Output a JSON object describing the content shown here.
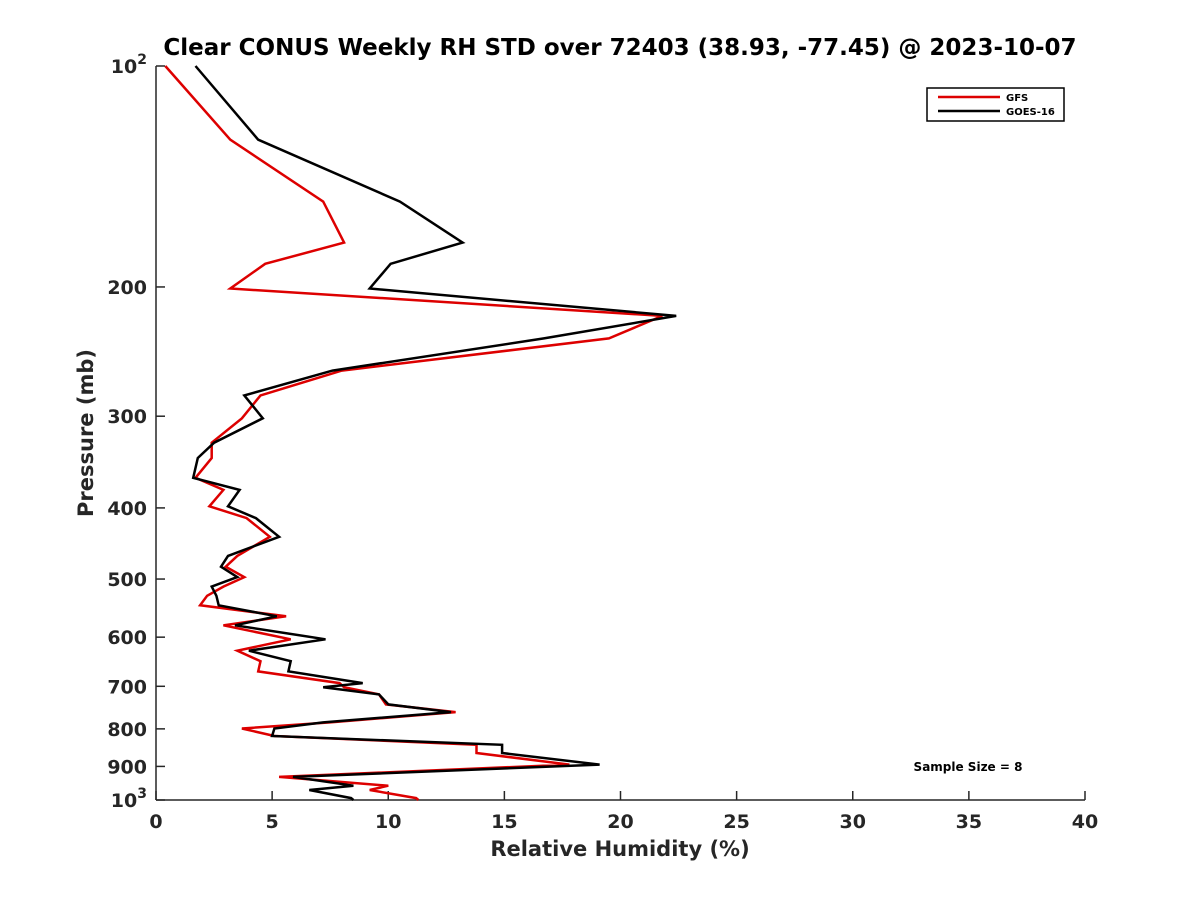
{
  "chart_data": {
    "type": "line",
    "title": "Clear CONUS Weekly RH STD over 72403 (38.93, -77.45) @ 2023-10-07",
    "xlabel": "Relative Humidity (%)",
    "ylabel": "Pressure (mb)",
    "xlim": [
      0,
      40
    ],
    "ylim": [
      100,
      1000
    ],
    "y_scale": "log",
    "y_reversed": true,
    "grid": false,
    "legend_position": "top-right",
    "x_ticks": [
      {
        "value": 0,
        "label": "0"
      },
      {
        "value": 5,
        "label": "5"
      },
      {
        "value": 10,
        "label": "10"
      },
      {
        "value": 15,
        "label": "15"
      },
      {
        "value": 20,
        "label": "20"
      },
      {
        "value": 25,
        "label": "25"
      },
      {
        "value": 30,
        "label": "30"
      },
      {
        "value": 35,
        "label": "35"
      },
      {
        "value": 40,
        "label": "40"
      }
    ],
    "y_ticks": [
      {
        "value": 100,
        "base": "10",
        "exp": "2"
      },
      {
        "value": 200,
        "base": "200",
        "exp": ""
      },
      {
        "value": 300,
        "base": "300",
        "exp": ""
      },
      {
        "value": 400,
        "base": "400",
        "exp": ""
      },
      {
        "value": 500,
        "base": "500",
        "exp": ""
      },
      {
        "value": 600,
        "base": "600",
        "exp": ""
      },
      {
        "value": 700,
        "base": "700",
        "exp": ""
      },
      {
        "value": 800,
        "base": "800",
        "exp": ""
      },
      {
        "value": 900,
        "base": "900",
        "exp": ""
      },
      {
        "value": 1000,
        "base": "10",
        "exp": "3"
      }
    ],
    "annotation": "Sample Size = 8",
    "series": [
      {
        "name": "GFS",
        "color": "#dd0000",
        "points": [
          [
            0.4,
            100
          ],
          [
            3.2,
            126
          ],
          [
            7.2,
            153
          ],
          [
            8.1,
            174
          ],
          [
            4.7,
            186
          ],
          [
            3.2,
            201
          ],
          [
            21.8,
            219
          ],
          [
            19.5,
            235
          ],
          [
            8.0,
            260
          ],
          [
            4.5,
            281
          ],
          [
            3.7,
            302
          ],
          [
            2.4,
            326
          ],
          [
            2.4,
            342
          ],
          [
            1.7,
            364
          ],
          [
            2.9,
            378
          ],
          [
            2.3,
            398
          ],
          [
            3.9,
            413
          ],
          [
            4.9,
            438
          ],
          [
            3.5,
            465
          ],
          [
            3.0,
            481
          ],
          [
            3.8,
            497
          ],
          [
            2.9,
            512
          ],
          [
            2.2,
            527
          ],
          [
            1.9,
            543
          ],
          [
            5.6,
            562
          ],
          [
            2.9,
            578
          ],
          [
            5.8,
            604
          ],
          [
            3.5,
            626
          ],
          [
            4.5,
            647
          ],
          [
            4.4,
            668
          ],
          [
            7.9,
            693
          ],
          [
            8.1,
            702
          ],
          [
            9.6,
            718
          ],
          [
            9.9,
            741
          ],
          [
            12.9,
            759
          ],
          [
            7.5,
            784
          ],
          [
            3.7,
            799
          ],
          [
            5.1,
            818
          ],
          [
            13.8,
            841
          ],
          [
            13.8,
            863
          ],
          [
            17.8,
            895
          ],
          [
            5.3,
            930
          ],
          [
            10.0,
            956
          ],
          [
            9.2,
            969
          ],
          [
            11.2,
            994
          ],
          [
            11.3,
            1000
          ]
        ]
      },
      {
        "name": "GOES-16",
        "color": "#000000",
        "points": [
          [
            1.7,
            100
          ],
          [
            4.4,
            126
          ],
          [
            10.5,
            153
          ],
          [
            13.2,
            174
          ],
          [
            10.1,
            186
          ],
          [
            9.2,
            201
          ],
          [
            22.4,
            219
          ],
          [
            16.7,
            235
          ],
          [
            7.6,
            260
          ],
          [
            3.8,
            281
          ],
          [
            4.6,
            302
          ],
          [
            2.5,
            326
          ],
          [
            1.8,
            342
          ],
          [
            1.6,
            364
          ],
          [
            3.6,
            378
          ],
          [
            3.1,
            398
          ],
          [
            4.3,
            413
          ],
          [
            5.3,
            438
          ],
          [
            3.1,
            465
          ],
          [
            2.8,
            481
          ],
          [
            3.5,
            497
          ],
          [
            2.4,
            512
          ],
          [
            2.6,
            527
          ],
          [
            2.7,
            543
          ],
          [
            5.2,
            562
          ],
          [
            3.4,
            578
          ],
          [
            7.3,
            604
          ],
          [
            4.0,
            626
          ],
          [
            5.8,
            647
          ],
          [
            5.7,
            668
          ],
          [
            8.9,
            693
          ],
          [
            7.2,
            702
          ],
          [
            9.6,
            718
          ],
          [
            10.0,
            741
          ],
          [
            12.7,
            759
          ],
          [
            7.2,
            784
          ],
          [
            5.1,
            799
          ],
          [
            5.0,
            818
          ],
          [
            14.9,
            841
          ],
          [
            14.9,
            863
          ],
          [
            19.1,
            895
          ],
          [
            5.9,
            930
          ],
          [
            8.5,
            956
          ],
          [
            6.6,
            969
          ],
          [
            8.4,
            994
          ],
          [
            8.5,
            1000
          ]
        ]
      }
    ]
  }
}
